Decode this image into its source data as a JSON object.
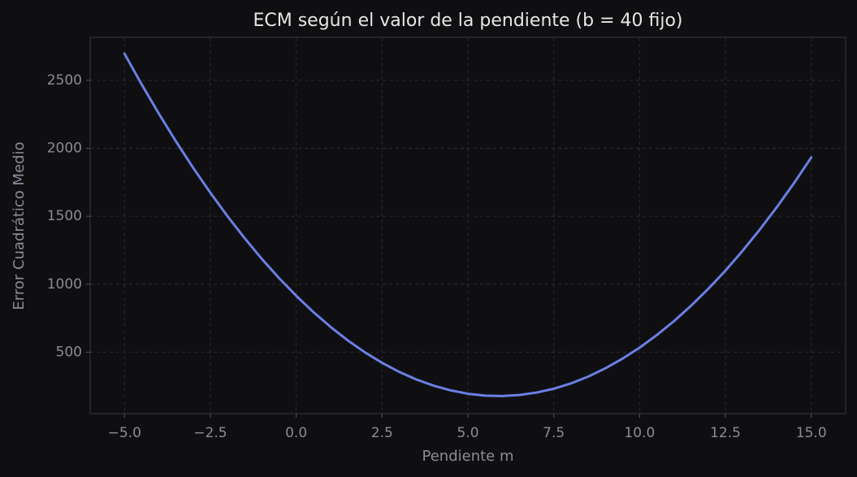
{
  "chart_data": {
    "type": "line",
    "title": "ECM según el valor de la pendiente (b = 40 fijo)",
    "x_label": "Pendiente m",
    "y_label": "Error Cuadrático Medio",
    "x": [
      -5,
      -4.5,
      -4,
      -3.5,
      -3,
      -2.5,
      -2,
      -1.5,
      -1,
      -0.5,
      0,
      0.5,
      1,
      1.5,
      2,
      2.5,
      3,
      3.5,
      4,
      4.5,
      5,
      5.5,
      6,
      6.5,
      7,
      7.5,
      8,
      8.5,
      9,
      9.5,
      10,
      10.5,
      11,
      11.5,
      12,
      12.5,
      13,
      13.5,
      14,
      14.5,
      15
    ],
    "series": [
      {
        "name": "ECM",
        "color": "#6b7fe3",
        "values": [
          2696,
          2470,
          2255,
          2050,
          1856,
          1673,
          1500,
          1338,
          1186,
          1045,
          915,
          795,
          686,
          587,
          499,
          422,
          355,
          299,
          254,
          219,
          194,
          180,
          177,
          185,
          203,
          231,
          270,
          320,
          381,
          452,
          533,
          626,
          728,
          842,
          966,
          1100,
          1246,
          1402,
          1568,
          1745,
          1933
        ]
      }
    ],
    "xlim": [
      -6,
      16
    ],
    "ylim": [
      48,
      2816
    ],
    "xticks": [
      {
        "value": -5,
        "label": "−5.0"
      },
      {
        "value": -2.5,
        "label": "−2.5"
      },
      {
        "value": 0,
        "label": "0.0"
      },
      {
        "value": 2.5,
        "label": "2.5"
      },
      {
        "value": 5,
        "label": "5.0"
      },
      {
        "value": 7.5,
        "label": "7.5"
      },
      {
        "value": 10,
        "label": "10.0"
      },
      {
        "value": 12.5,
        "label": "12.5"
      },
      {
        "value": 15,
        "label": "15.0"
      }
    ],
    "yticks": [
      500,
      1000,
      1500,
      2000,
      2500
    ],
    "grid": true
  }
}
